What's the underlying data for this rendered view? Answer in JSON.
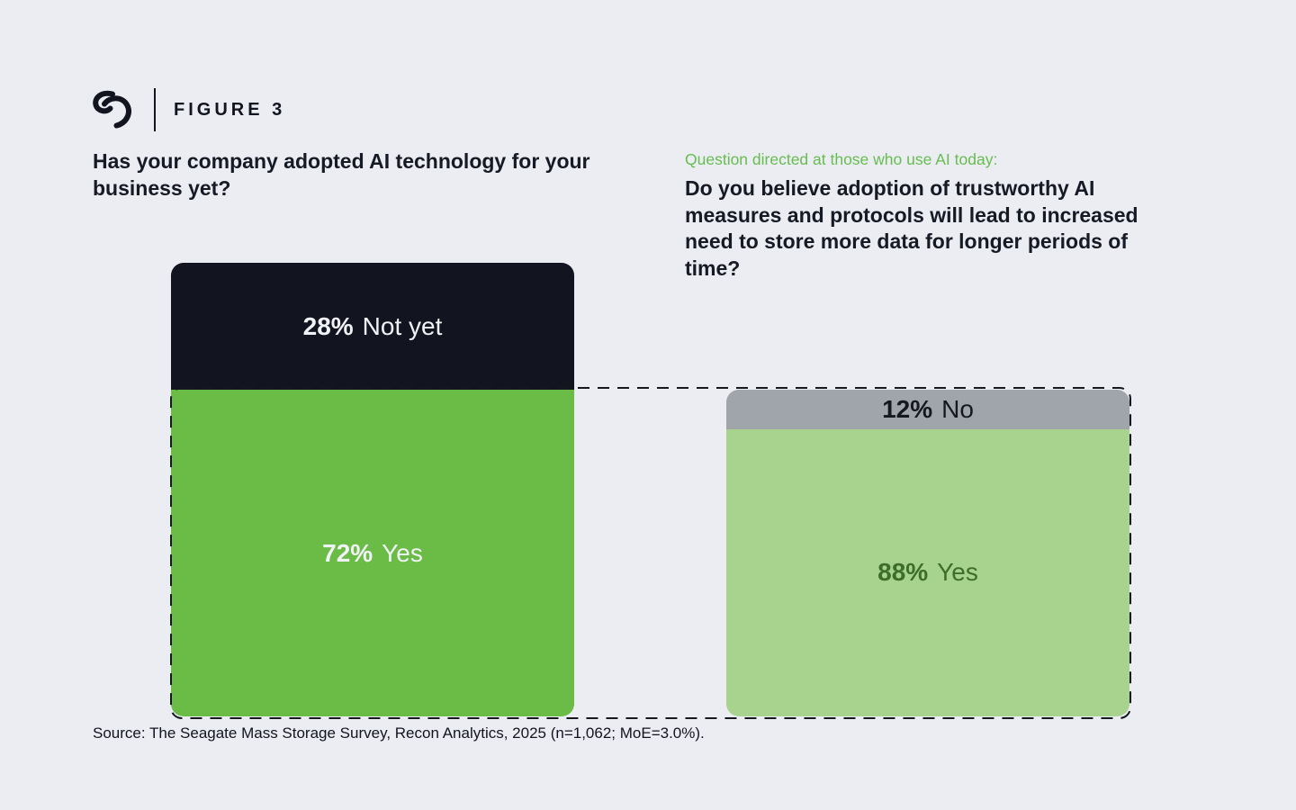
{
  "brand": {
    "logo_icon": "seagate-swirl-logo"
  },
  "figure_label": "FIGURE 3",
  "left_panel": {
    "question": "Has your company adopted AI technology for your business yet?"
  },
  "right_panel": {
    "context": "Question directed at those who use AI today:",
    "question": "Do you believe adoption of trustworthy AI measures and protocols will lead to increased need to store more data for longer periods of time?"
  },
  "source": "Source: The Seagate Mass Storage Survey, Recon Analytics, 2025 (n=1,062; MoE=3.0%).",
  "colors": {
    "page_background": "#ebedf3",
    "dark_navy": "#12151f",
    "brand_green": "#6abc46",
    "light_green": "#a8d38f",
    "gray": "#a0a4ab",
    "context_green_text": "#67bd4f",
    "dashed_outline": "#15181f"
  },
  "chart_data": [
    {
      "type": "bar",
      "subtype": "single-stacked-column",
      "title": "Has your company adopted AI technology for your business yet?",
      "unit": "%",
      "legend_position": "in-bar labels",
      "grid": false,
      "segments": [
        {
          "label": "Not yet",
          "value": 28,
          "display": "28%",
          "color": "#12151f",
          "text_color": "#f1f2f6"
        },
        {
          "label": "Yes",
          "value": 72,
          "display": "72%",
          "color": "#6abc46",
          "text_color": "#f1f2f6"
        }
      ]
    },
    {
      "type": "bar",
      "subtype": "single-stacked-column",
      "context": "Question directed at those who use AI today:",
      "title": "Do you believe adoption of trustworthy AI measures and protocols will lead to increased need to store more data for longer periods of time?",
      "unit": "%",
      "legend_position": "in-bar labels",
      "grid": false,
      "annotation": "dashed outline visually links this bar to the 72% Yes segment of the first bar",
      "segments": [
        {
          "label": "No",
          "value": 12,
          "display": "12%",
          "color": "#a0a4ab",
          "text_color": "#15181f"
        },
        {
          "label": "Yes",
          "value": 88,
          "display": "88%",
          "color": "#a8d38f",
          "text_color": "#3c6e2a"
        }
      ]
    }
  ]
}
